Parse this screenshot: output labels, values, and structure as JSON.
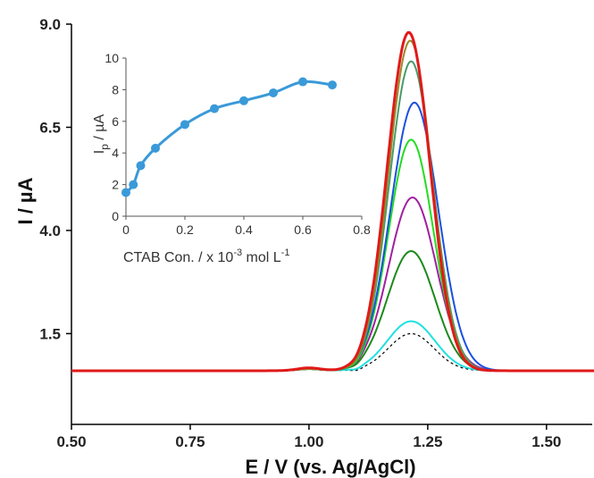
{
  "chart_data": [
    {
      "type": "line",
      "xlabel": "E / V (vs. Ag/AgCl)",
      "ylabel": "I / µA",
      "xlim": [
        0.5,
        1.6
      ],
      "ylim": [
        -0.7,
        9.0
      ],
      "x_ticks": [
        0.5,
        0.75,
        1.0,
        1.25,
        1.5
      ],
      "x_tick_labels": [
        "0.50",
        "0.75",
        "1.00",
        "1.25",
        "1.50"
      ],
      "y_ticks": [
        1.5,
        4.0,
        6.5,
        9.0
      ],
      "y_tick_labels": [
        "1.5",
        "4.0",
        "6.5",
        "9.0"
      ],
      "grid": false,
      "baseline": 0.6,
      "series": [
        {
          "color": "#000000",
          "dashed": true,
          "peak_x": 1.215,
          "peak_y": 1.5,
          "width": 0.048
        },
        {
          "color": "#20e0e0",
          "peak_x": 1.215,
          "peak_y": 1.8,
          "width": 0.05
        },
        {
          "color": "#1a8a1a",
          "peak_x": 1.215,
          "peak_y": 3.5,
          "width": 0.05
        },
        {
          "color": "#a020a0",
          "peak_x": 1.218,
          "peak_y": 4.8,
          "width": 0.05
        },
        {
          "color": "#22dd22",
          "peak_x": 1.215,
          "peak_y": 6.2,
          "width": 0.047
        },
        {
          "color": "#1a50e0",
          "peak_x": 1.222,
          "peak_y": 7.1,
          "width": 0.05
        },
        {
          "color": "#4a9a6a",
          "peak_x": 1.215,
          "peak_y": 8.1,
          "width": 0.046
        },
        {
          "color": "#9a8a2a",
          "peak_x": 1.213,
          "peak_y": 8.6,
          "width": 0.045
        },
        {
          "color": "#e01a1a",
          "peak_x": 1.21,
          "peak_y": 8.8,
          "width": 0.045
        }
      ]
    },
    {
      "type": "line",
      "xlabel": "CTAB Con. / x 10-3 mol L-1",
      "ylabel": "Ip / µA",
      "xlim": [
        0,
        0.8
      ],
      "ylim": [
        0,
        10
      ],
      "x_ticks": [
        0,
        0.2,
        0.4,
        0.6,
        0.8
      ],
      "x_tick_labels": [
        "0",
        "0.2",
        "0.4",
        "0.6",
        "0.8"
      ],
      "y_ticks": [
        0,
        2,
        4,
        6,
        8,
        10
      ],
      "y_tick_labels": [
        "0",
        "2",
        "4",
        "6",
        "8",
        "10"
      ],
      "color": "#3a9ad8",
      "x": [
        0.0,
        0.025,
        0.05,
        0.1,
        0.2,
        0.3,
        0.4,
        0.5,
        0.6,
        0.7
      ],
      "y": [
        1.5,
        2.0,
        3.2,
        4.3,
        5.8,
        6.8,
        7.3,
        7.8,
        8.5,
        8.3
      ]
    }
  ],
  "main": {
    "x_label": "E / V (vs. Ag/AgCl)",
    "y_label_prefix": "I / ",
    "y_label_unit": "µA"
  },
  "inset": {
    "x_label_main": "CTAB Con. / x 10",
    "x_label_exp": "-3",
    "x_label_unit": " mol L",
    "x_label_unit_exp": "-1",
    "y_label_main": "I",
    "y_label_sub": "p",
    "y_label_unit": " / µA"
  }
}
